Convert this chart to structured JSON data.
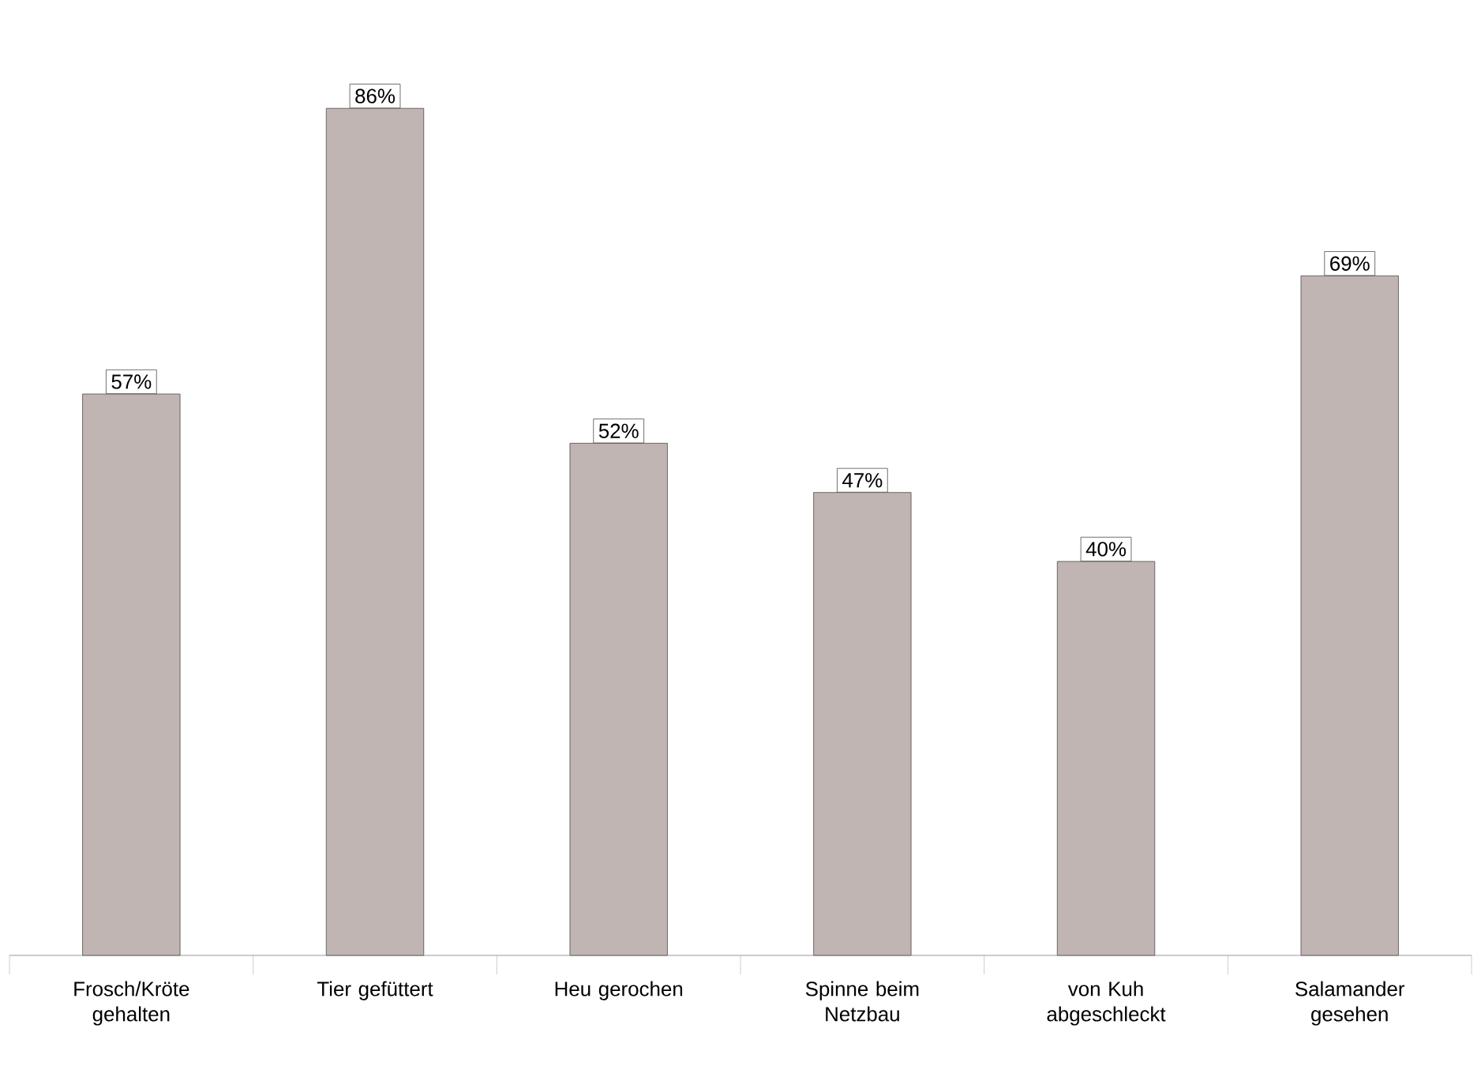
{
  "chart_data": {
    "type": "bar",
    "categories": [
      "Frosch/Kröte gehalten",
      "Tier gefüttert",
      "Heu gerochen",
      "Spinne beim Netzbau",
      "von Kuh abgeschleckt",
      "Salamander gesehen"
    ],
    "values": [
      57,
      86,
      52,
      47,
      40,
      69
    ],
    "value_labels": [
      "57%",
      "86%",
      "52%",
      "47%",
      "40%",
      "69%"
    ],
    "color": "#c0b5b2"
  }
}
